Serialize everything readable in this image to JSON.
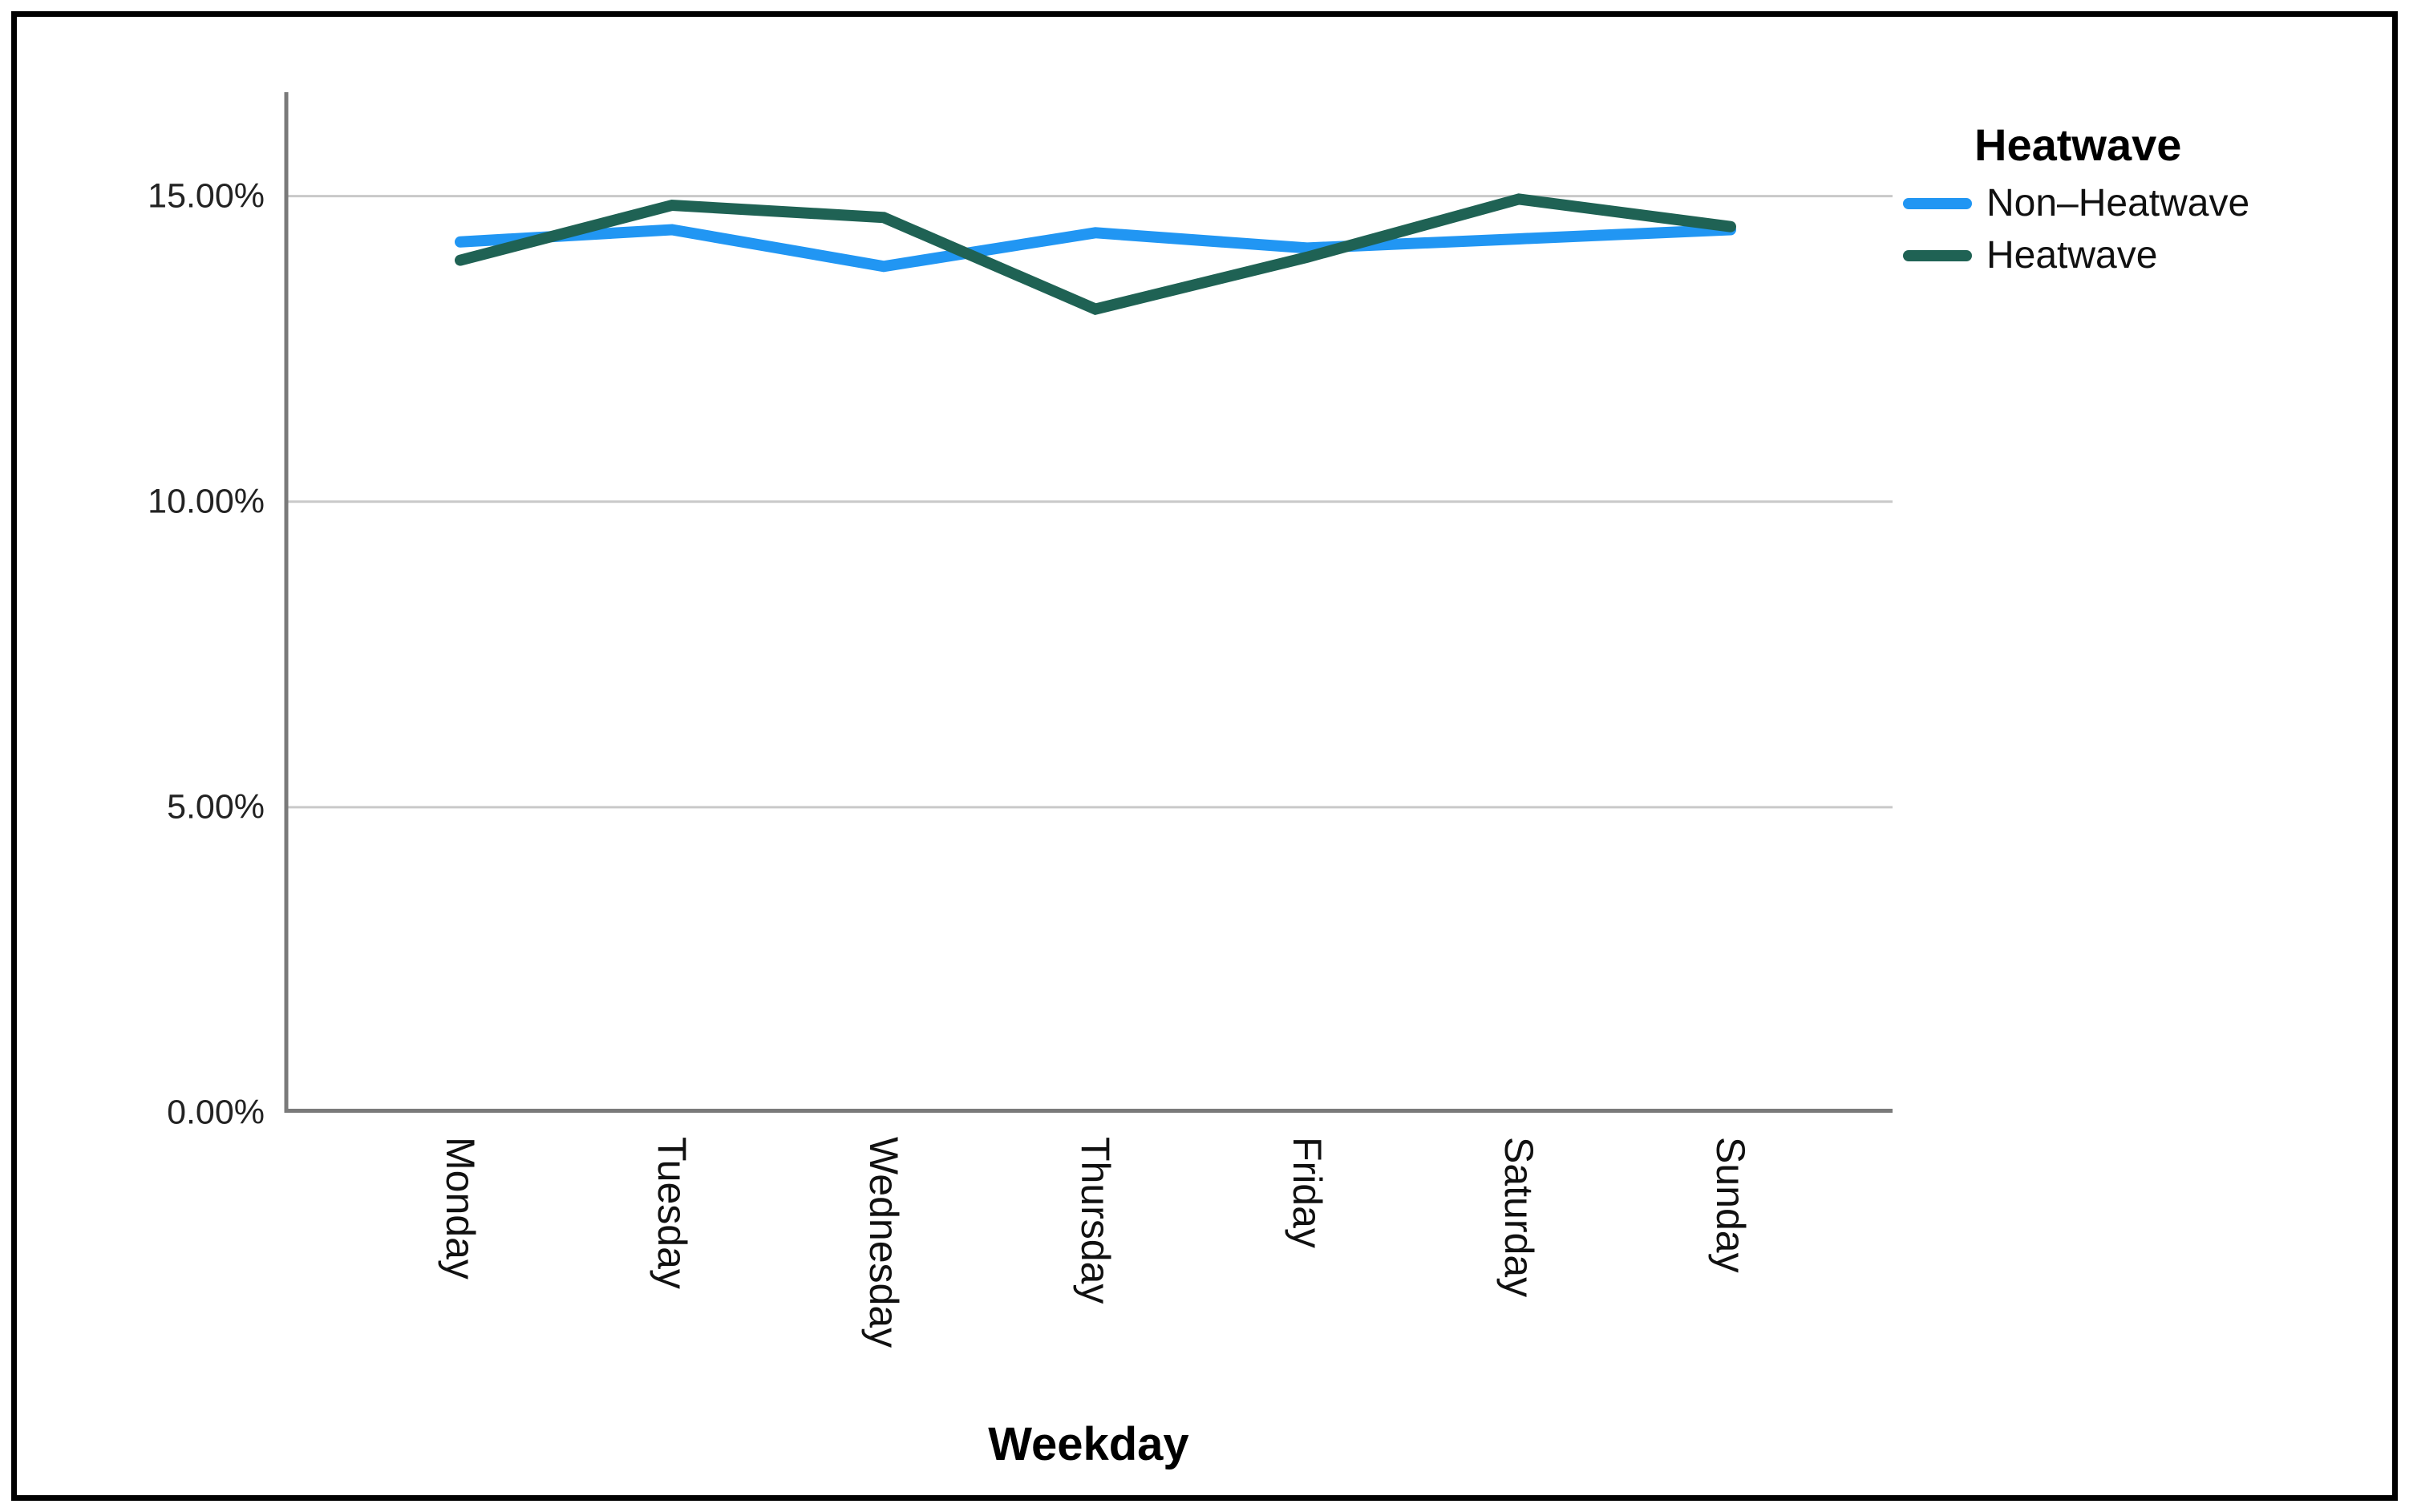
{
  "window": {
    "background": "#ffffff",
    "frame_border_color": "#000000"
  },
  "chart_data": {
    "type": "line",
    "title": "",
    "categories": [
      "Monday",
      "Tuesday",
      "Wednesday",
      "Thursday",
      "Friday",
      "Saturday",
      "Sunday"
    ],
    "series": [
      {
        "name": "Non–Heatwave",
        "color": "#2196F3",
        "values": [
          14.25,
          14.45,
          13.85,
          14.4,
          14.15,
          14.3,
          14.45
        ]
      },
      {
        "name": "Heatwave",
        "color": "#1F6254",
        "values": [
          13.95,
          14.85,
          14.65,
          13.15,
          14.0,
          14.95,
          14.5
        ]
      }
    ],
    "xlabel": "Weekday",
    "ylabel": "",
    "ylim": [
      0,
      16.7
    ],
    "yticks": [
      {
        "value": 15,
        "label": "15.00%"
      },
      {
        "value": 10,
        "label": "10.00%"
      },
      {
        "value": 5,
        "label": "5.00%"
      },
      {
        "value": 0,
        "label": "0.00%"
      }
    ],
    "grid": "horizontal",
    "gridline_color": "#c9c9c9",
    "axis_color": "#7a7a7a",
    "line_width": 14,
    "legend": {
      "title": "Heatwave",
      "position": "top-right-outside"
    }
  }
}
